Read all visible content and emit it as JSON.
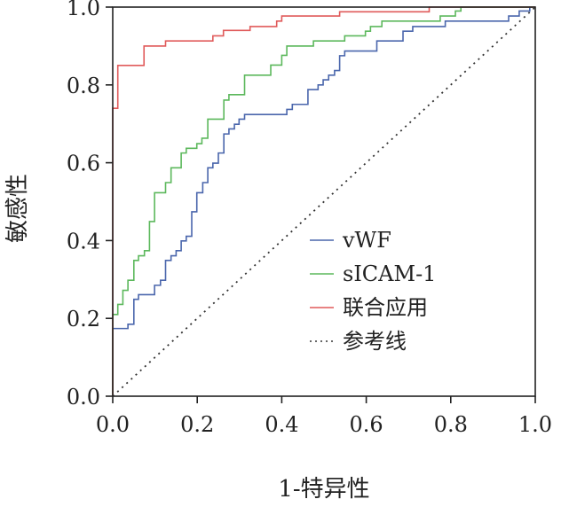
{
  "chart_data": {
    "type": "line",
    "title": "",
    "xlabel": "1-特异性",
    "ylabel": "敏感性",
    "xlim": [
      0,
      1
    ],
    "ylim": [
      0,
      1
    ],
    "xticks": [
      "0.0",
      "0.2",
      "0.4",
      "0.6",
      "0.8",
      "1.0"
    ],
    "yticks": [
      "0.0",
      "0.2",
      "0.4",
      "0.6",
      "0.8",
      "1.0"
    ],
    "grid": false,
    "legend_position": "center-right",
    "series": [
      {
        "name": "vWF",
        "color": "#4a66ac",
        "style": "step",
        "points": [
          [
            0,
            0
          ],
          [
            0,
            0.174
          ],
          [
            0.036,
            0.185
          ],
          [
            0.05,
            0.249
          ],
          [
            0.061,
            0.261
          ],
          [
            0.099,
            0.285
          ],
          [
            0.113,
            0.298
          ],
          [
            0.125,
            0.349
          ],
          [
            0.138,
            0.361
          ],
          [
            0.15,
            0.374
          ],
          [
            0.162,
            0.399
          ],
          [
            0.174,
            0.411
          ],
          [
            0.187,
            0.474
          ],
          [
            0.199,
            0.523
          ],
          [
            0.213,
            0.549
          ],
          [
            0.225,
            0.587
          ],
          [
            0.237,
            0.599
          ],
          [
            0.25,
            0.625
          ],
          [
            0.263,
            0.674
          ],
          [
            0.275,
            0.687
          ],
          [
            0.288,
            0.699
          ],
          [
            0.299,
            0.712
          ],
          [
            0.312,
            0.724
          ],
          [
            0.412,
            0.737
          ],
          [
            0.425,
            0.75
          ],
          [
            0.462,
            0.788
          ],
          [
            0.486,
            0.8
          ],
          [
            0.498,
            0.813
          ],
          [
            0.511,
            0.825
          ],
          [
            0.525,
            0.837
          ],
          [
            0.537,
            0.875
          ],
          [
            0.549,
            0.887
          ],
          [
            0.625,
            0.913
          ],
          [
            0.687,
            0.938
          ],
          [
            0.71,
            0.95
          ],
          [
            0.787,
            0.964
          ],
          [
            0.937,
            0.977
          ],
          [
            0.962,
            0.99
          ],
          [
            0.987,
            1.0
          ],
          [
            1,
            1
          ]
        ]
      },
      {
        "name": "sICAM-1",
        "color": "#5cb85c",
        "style": "step",
        "points": [
          [
            0,
            0
          ],
          [
            0,
            0.21
          ],
          [
            0.012,
            0.236
          ],
          [
            0.024,
            0.272
          ],
          [
            0.036,
            0.298
          ],
          [
            0.05,
            0.349
          ],
          [
            0.061,
            0.361
          ],
          [
            0.075,
            0.374
          ],
          [
            0.087,
            0.449
          ],
          [
            0.099,
            0.523
          ],
          [
            0.125,
            0.549
          ],
          [
            0.138,
            0.587
          ],
          [
            0.162,
            0.625
          ],
          [
            0.174,
            0.637
          ],
          [
            0.199,
            0.649
          ],
          [
            0.211,
            0.663
          ],
          [
            0.225,
            0.712
          ],
          [
            0.263,
            0.761
          ],
          [
            0.275,
            0.775
          ],
          [
            0.312,
            0.825
          ],
          [
            0.374,
            0.851
          ],
          [
            0.4,
            0.876
          ],
          [
            0.412,
            0.9
          ],
          [
            0.475,
            0.913
          ],
          [
            0.549,
            0.926
          ],
          [
            0.598,
            0.938
          ],
          [
            0.61,
            0.95
          ],
          [
            0.637,
            0.964
          ],
          [
            0.775,
            0.977
          ],
          [
            0.811,
            0.99
          ],
          [
            0.824,
            1.0
          ],
          [
            1,
            1
          ]
        ]
      },
      {
        "name": "联合应用",
        "color": "#e05a5a",
        "style": "step",
        "points": [
          [
            0,
            0
          ],
          [
            0,
            0.74
          ],
          [
            0.012,
            0.85
          ],
          [
            0.074,
            0.9
          ],
          [
            0.125,
            0.913
          ],
          [
            0.237,
            0.926
          ],
          [
            0.262,
            0.94
          ],
          [
            0.325,
            0.95
          ],
          [
            0.388,
            0.964
          ],
          [
            0.4,
            0.977
          ],
          [
            0.537,
            0.988
          ],
          [
            0.749,
            1.0
          ],
          [
            1,
            1
          ]
        ]
      },
      {
        "name": "参考线",
        "color": "#333333",
        "style": "dotted",
        "points": [
          [
            0,
            0
          ],
          [
            1,
            1
          ]
        ]
      }
    ]
  }
}
